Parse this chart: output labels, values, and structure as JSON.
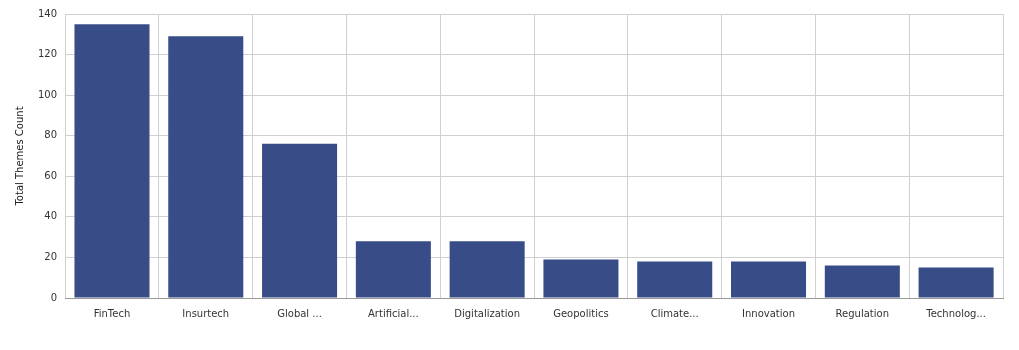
{
  "chart_data": {
    "type": "bar",
    "ylabel": "Total Themes Count",
    "categories": [
      "FinTech",
      "Insurtech",
      "Global ...",
      "Artificial...",
      "Digitalization",
      "Geopolitics",
      "Climate...",
      "Innovation",
      "Regulation",
      "Technolog..."
    ],
    "values": [
      135,
      129,
      76,
      28,
      28,
      19,
      18,
      18,
      16,
      15
    ],
    "color": "#384d87",
    "ylim": [
      0,
      140
    ],
    "yticks": [
      0,
      20,
      40,
      60,
      80,
      100,
      120,
      140
    ],
    "grid": true
  }
}
